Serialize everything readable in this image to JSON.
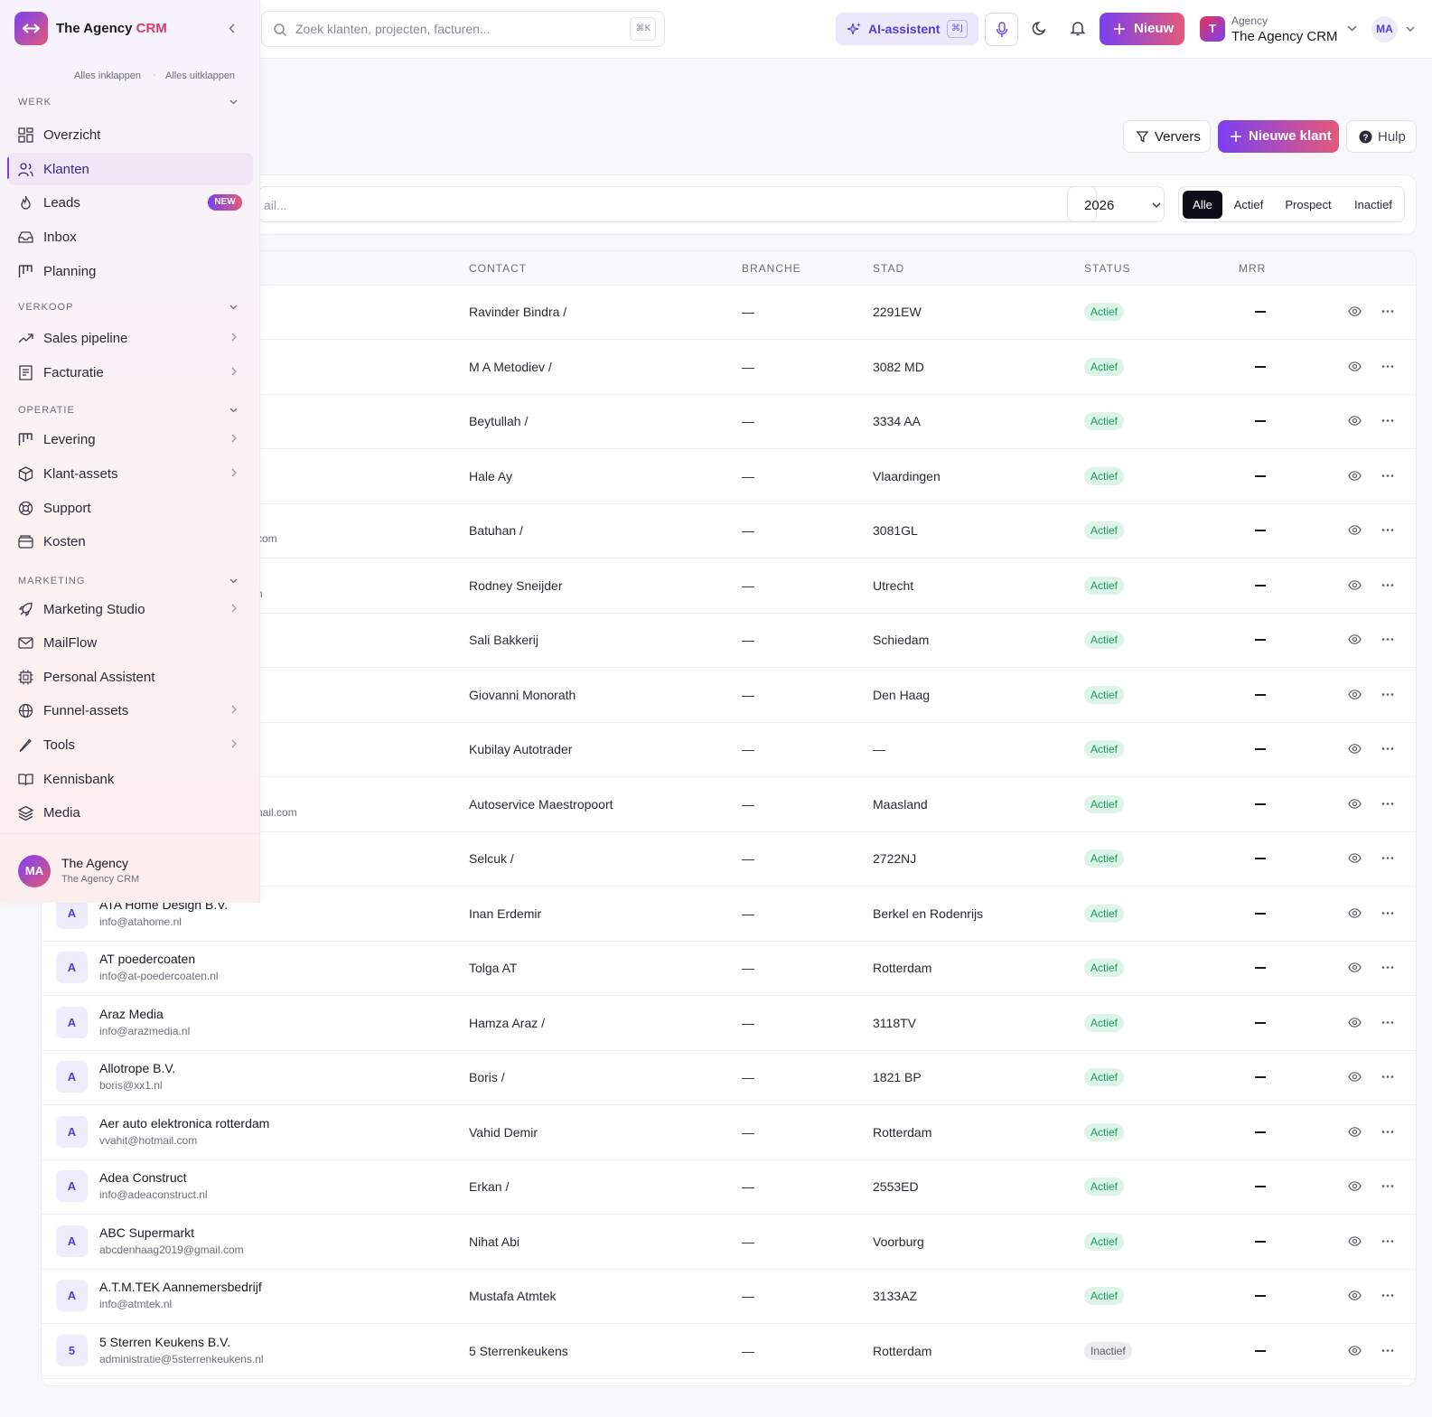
{
  "app": {
    "title_main": "The Agency ",
    "title_accent": "CRM"
  },
  "topbar": {
    "search_placeholder": "Zoek klanten, projecten, facturen...",
    "search_kbd": "⌘K",
    "ai_label": "AI-assistent",
    "ai_kbd": "⌘J",
    "new_label": "Nieuw",
    "agency_small": "Agency",
    "agency_name": "The Agency CRM",
    "agency_initial": "T",
    "user_initials": "MA"
  },
  "sidebar": {
    "collapse_all": "Alles inklappen",
    "expand_all": "Alles uitklappen",
    "sections": {
      "werk": "WERK",
      "verkoop": "VERKOOP",
      "operatie": "OPERATIE",
      "marketing": "MARKETING"
    },
    "items": [
      {
        "label": "Overzicht",
        "icon": "grid-icon"
      },
      {
        "label": "Klanten",
        "icon": "users-icon",
        "active": true
      },
      {
        "label": "Leads",
        "icon": "flame-icon",
        "badge": "NEW"
      },
      {
        "label": "Inbox",
        "icon": "inbox-icon"
      },
      {
        "label": "Planning",
        "icon": "kanban-icon"
      },
      {
        "label": "Sales pipeline",
        "icon": "trending-icon"
      },
      {
        "label": "Facturatie",
        "icon": "receipt-icon"
      },
      {
        "label": "Levering",
        "icon": "kanban-icon"
      },
      {
        "label": "Klant-assets",
        "icon": "box-icon"
      },
      {
        "label": "Support",
        "icon": "lifebuoy-icon"
      },
      {
        "label": "Kosten",
        "icon": "wallet-icon"
      },
      {
        "label": "Marketing Studio",
        "icon": "rocket-icon"
      },
      {
        "label": "MailFlow",
        "icon": "mail-icon"
      },
      {
        "label": "Personal Assistent",
        "icon": "chip-icon"
      },
      {
        "label": "Funnel-assets",
        "icon": "globe-icon"
      },
      {
        "label": "Tools",
        "icon": "pen-icon"
      },
      {
        "label": "Kennisbank",
        "icon": "book-icon"
      },
      {
        "label": "Media",
        "icon": "layers-icon"
      }
    ],
    "footer": {
      "initials": "MA",
      "name": "The Agency",
      "sub": "The Agency CRM"
    }
  },
  "header_buttons": {
    "ververs": "Ververs",
    "nieuwe_klant": "Nieuwe klant",
    "hulp": "Hulp"
  },
  "filters": {
    "search_placeholder_visible": "ail...",
    "year": "2026",
    "segments": [
      "Alle",
      "Actief",
      "Prospect",
      "Inactief"
    ],
    "active_segment": "Alle"
  },
  "table": {
    "headers": {
      "contact": "CONTACT",
      "branche": "BRANCHE",
      "stad": "STAD",
      "status": "STATUS",
      "mrr": "MRR"
    },
    "rows": [
      {
        "initial": "",
        "name": "",
        "email": "",
        "contact": "Ravinder Bindra /",
        "branche": "—",
        "city": "2291EW",
        "status": "Actief"
      },
      {
        "initial": "",
        "name": "",
        "email": "",
        "contact": "M A Metodiev /",
        "branche": "—",
        "city": "3082 MD",
        "status": "Actief"
      },
      {
        "initial": "",
        "name": "",
        "email": "",
        "contact": "Beytullah /",
        "branche": "—",
        "city": "3334 AA",
        "status": "Actief"
      },
      {
        "initial": "",
        "name": "",
        "email": "",
        "contact": "Hale Ay",
        "branche": "—",
        "city": "Vlaardingen",
        "status": "Actief"
      },
      {
        "initial": "",
        "name": "",
        "email": "com",
        "contact": "Batuhan /",
        "branche": "—",
        "city": "3081GL",
        "status": "Actief"
      },
      {
        "initial": "",
        "name": "",
        "email": "n",
        "contact": "Rodney Sneijder",
        "branche": "—",
        "city": "Utrecht",
        "status": "Actief"
      },
      {
        "initial": "",
        "name": "",
        "email": "",
        "contact": "Sali Bakkerij",
        "branche": "—",
        "city": "Schiedam",
        "status": "Actief"
      },
      {
        "initial": "",
        "name": "",
        "email": "",
        "contact": "Giovanni Monorath",
        "branche": "—",
        "city": "Den Haag",
        "status": "Actief"
      },
      {
        "initial": "",
        "name": "",
        "email": "",
        "contact": "Kubilay Autotrader",
        "branche": "—",
        "city": "—",
        "status": "Actief"
      },
      {
        "initial": "",
        "name": "",
        "email": "nail.com",
        "contact": "Autoservice Maestropoort",
        "branche": "—",
        "city": "Maasland",
        "status": "Actief"
      },
      {
        "initial": "",
        "name": "",
        "email": "",
        "contact": "Selcuk /",
        "branche": "—",
        "city": "2722NJ",
        "status": "Actief"
      },
      {
        "initial": "A",
        "name": "ATA Home Design B.V.",
        "email": "info@atahome.nl",
        "contact": "Inan Erdemir",
        "branche": "—",
        "city": "Berkel en Rodenrijs",
        "status": "Actief"
      },
      {
        "initial": "A",
        "name": "AT poedercoaten",
        "email": "info@at-poedercoaten.nl",
        "contact": "Tolga AT",
        "branche": "—",
        "city": "Rotterdam",
        "status": "Actief"
      },
      {
        "initial": "A",
        "name": "Araz Media",
        "email": "info@arazmedia.nl",
        "contact": "Hamza Araz /",
        "branche": "—",
        "city": "3118TV",
        "status": "Actief"
      },
      {
        "initial": "A",
        "name": "Allotrope B.V.",
        "email": "boris@xx1.nl",
        "contact": "Boris /",
        "branche": "—",
        "city": "1821 BP",
        "status": "Actief"
      },
      {
        "initial": "A",
        "name": "Aer auto elektronica rotterdam",
        "email": "vvahit@hotmail.com",
        "contact": "Vahid Demir",
        "branche": "—",
        "city": "Rotterdam",
        "status": "Actief"
      },
      {
        "initial": "A",
        "name": "Adea Construct",
        "email": "info@adeaconstruct.nl",
        "contact": "Erkan /",
        "branche": "—",
        "city": "2553ED",
        "status": "Actief"
      },
      {
        "initial": "A",
        "name": "ABC Supermarkt",
        "email": "abcdenhaag2019@gmail.com",
        "contact": "Nihat Abi",
        "branche": "—",
        "city": "Voorburg",
        "status": "Actief"
      },
      {
        "initial": "A",
        "name": "A.T.M.TEK Aannemersbedrijf",
        "email": "info@atmtek.nl",
        "contact": "Mustafa Atmtek",
        "branche": "—",
        "city": "3133AZ",
        "status": "Actief"
      },
      {
        "initial": "5",
        "name": "5 Sterren Keukens B.V.",
        "email": "administratie@5sterrenkeukens.nl",
        "contact": "5 Sterrenkeukens",
        "branche": "—",
        "city": "Rotterdam",
        "status": "Inactief"
      }
    ]
  },
  "colors": {
    "accent": "#7b3ff2",
    "accent2": "#e35a78",
    "active_status": "#1a9a5c"
  }
}
